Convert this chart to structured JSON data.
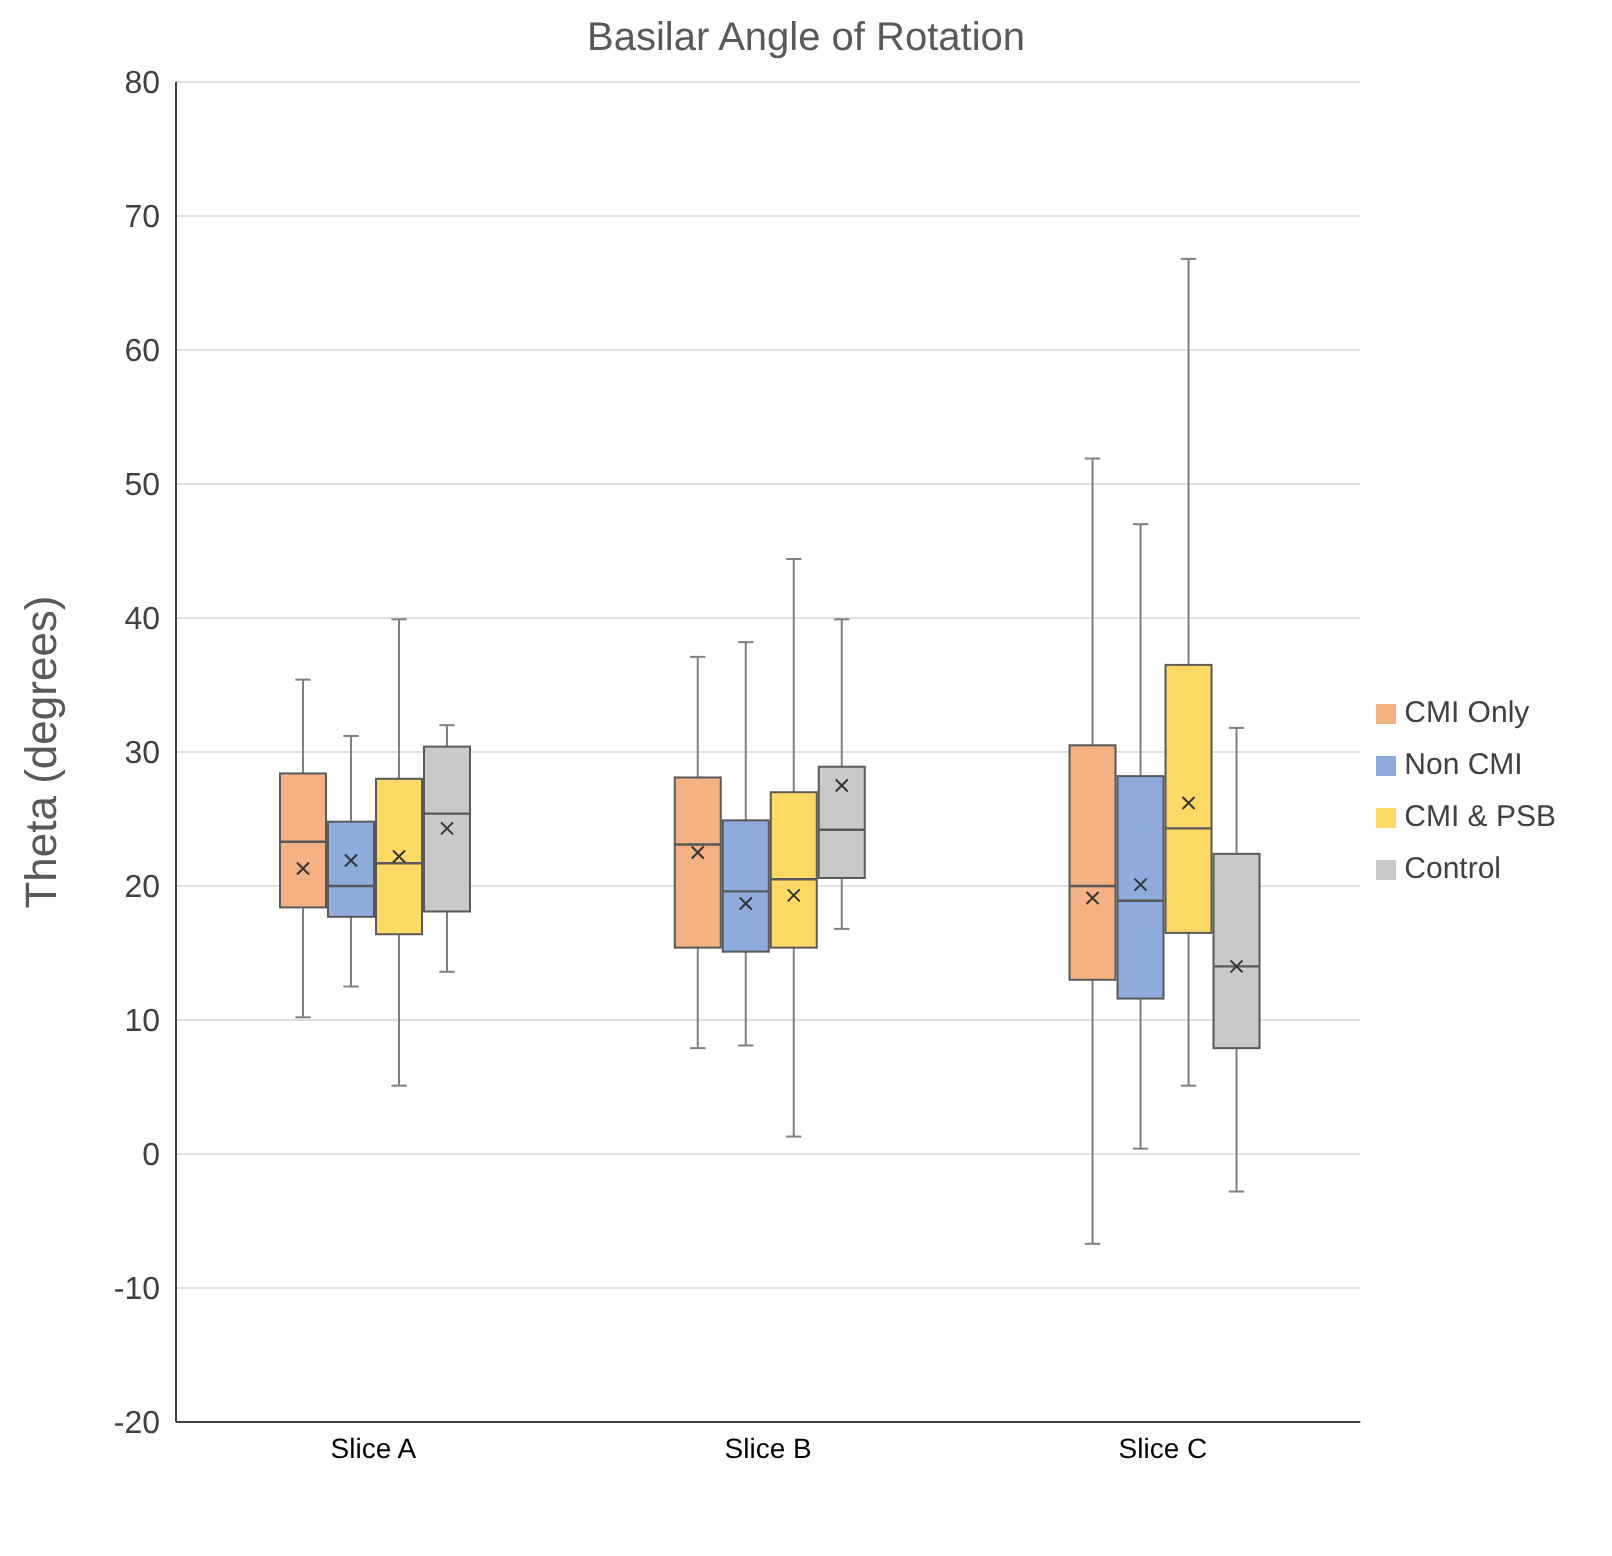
{
  "chart_data": {
    "type": "box",
    "title": "Basilar Angle of Rotation",
    "ylabel": "Theta (degrees)",
    "categories": [
      "Slice A",
      "Slice B",
      "Slice C"
    ],
    "ylim": [
      -20,
      80
    ],
    "yticks": [
      -20,
      -10,
      0,
      10,
      20,
      30,
      40,
      50,
      60,
      70,
      80
    ],
    "grid": "y",
    "legend": "right",
    "marker": "cross",
    "series": [
      {
        "name": "CMI Only",
        "color": "#f4b183",
        "boxes": [
          {
            "low": 10.2,
            "q1": 18.4,
            "median": 23.3,
            "q3": 28.4,
            "high": 35.4,
            "mean": 21.3
          },
          {
            "low": 7.9,
            "q1": 15.4,
            "median": 23.1,
            "q3": 28.1,
            "high": 37.1,
            "mean": 22.5
          },
          {
            "low": -6.7,
            "q1": 13.0,
            "median": 20.0,
            "q3": 30.5,
            "high": 51.9,
            "mean": 19.1
          }
        ]
      },
      {
        "name": "Non CMI",
        "color": "#8faadc",
        "boxes": [
          {
            "low": 12.5,
            "q1": 17.7,
            "median": 20.0,
            "q3": 24.8,
            "high": 31.2,
            "mean": 21.9
          },
          {
            "low": 8.1,
            "q1": 15.1,
            "median": 19.6,
            "q3": 24.9,
            "high": 38.2,
            "mean": 18.7
          },
          {
            "low": 0.4,
            "q1": 11.6,
            "median": 18.9,
            "q3": 28.2,
            "high": 47.0,
            "mean": 20.1
          }
        ]
      },
      {
        "name": "CMI & PSB",
        "color": "#ffd966",
        "boxes": [
          {
            "low": 5.1,
            "q1": 16.4,
            "median": 21.7,
            "q3": 28.0,
            "high": 39.9,
            "mean": 22.2
          },
          {
            "low": 1.3,
            "q1": 15.4,
            "median": 20.5,
            "q3": 27.0,
            "high": 44.4,
            "mean": 19.3
          },
          {
            "low": 5.1,
            "q1": 16.5,
            "median": 24.3,
            "q3": 36.5,
            "high": 66.8,
            "mean": 26.2
          }
        ]
      },
      {
        "name": "Control",
        "color": "#c9c9c9",
        "boxes": [
          {
            "low": 13.6,
            "q1": 18.1,
            "median": 25.4,
            "q3": 30.4,
            "high": 32.0,
            "mean": 24.3
          },
          {
            "low": 16.8,
            "q1": 20.6,
            "median": 24.2,
            "q3": 28.9,
            "high": 39.9,
            "mean": 27.5
          },
          {
            "low": -2.8,
            "q1": 7.9,
            "median": 14.0,
            "q3": 22.4,
            "high": 31.8,
            "mean": 14.0
          }
        ]
      }
    ]
  }
}
